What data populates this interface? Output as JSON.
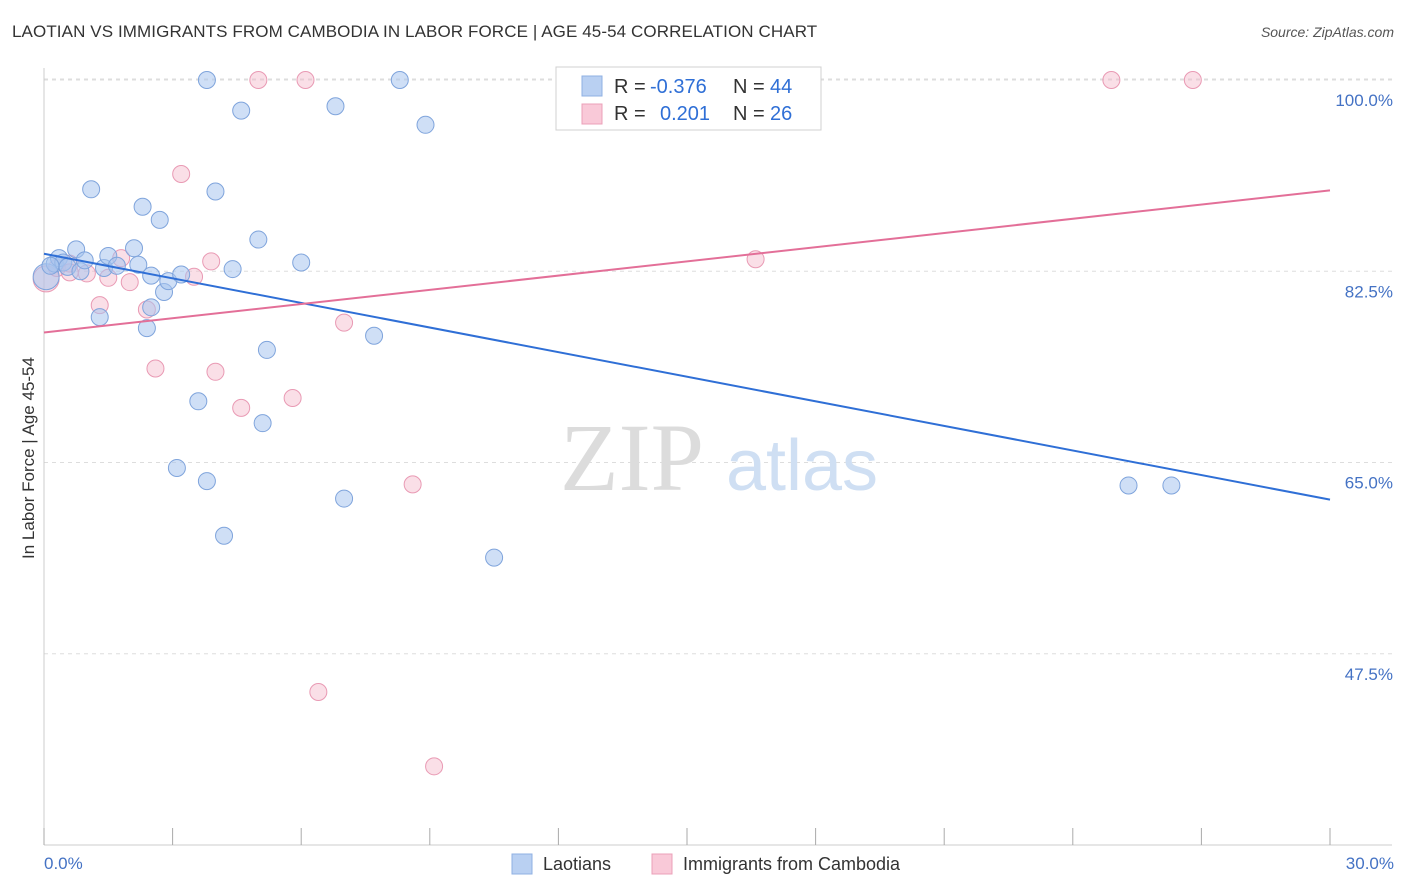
{
  "title": "LAOTIAN VS IMMIGRANTS FROM CAMBODIA IN LABOR FORCE | AGE 45-54 CORRELATION CHART",
  "source": "Source: ZipAtlas.com",
  "watermark": {
    "zip": "ZIP",
    "atlas": "atlas"
  },
  "legend": {
    "r_label": "R =",
    "n_label": "N =",
    "series1": {
      "r": "-0.376",
      "n": "44"
    },
    "series2": {
      "r": "0.201",
      "n": "26"
    }
  },
  "bottom_legend": {
    "series1": "Laotians",
    "series2": "Immigrants from Cambodia"
  },
  "chart_data": {
    "type": "scatter",
    "title": "LAOTIAN VS IMMIGRANTS FROM CAMBODIA IN LABOR FORCE | AGE 45-54 CORRELATION CHART",
    "xlabel": "",
    "ylabel": "In Labor Force | Age 45-54",
    "xlim": [
      0,
      30
    ],
    "ylim": [
      30,
      101.5
    ],
    "x_tick_labels": [
      "0.0%",
      "30.0%"
    ],
    "y_ticks": [
      47.5,
      65.0,
      82.5,
      100.0
    ],
    "y_tick_labels": [
      "47.5%",
      "65.0%",
      "82.5%",
      "100.0%"
    ],
    "colors": {
      "series1": "#a7c4ee",
      "series1_line": "#2f6fd6",
      "series2": "#f5b8ca",
      "series2_line": "#e36f98"
    },
    "series": [
      {
        "name": "Laotians",
        "r": -0.376,
        "n": 44,
        "trend": [
          [
            0,
            84.1
          ],
          [
            30,
            61.6
          ]
        ],
        "points": [
          [
            0.05,
            82.0
          ],
          [
            0.25,
            83.2
          ],
          [
            0.35,
            83.7
          ],
          [
            0.45,
            83.3
          ],
          [
            0.55,
            82.9
          ],
          [
            0.75,
            84.5
          ],
          [
            0.85,
            82.5
          ],
          [
            0.95,
            83.5
          ],
          [
            1.1,
            90.0
          ],
          [
            1.3,
            78.3
          ],
          [
            1.4,
            82.8
          ],
          [
            1.5,
            83.9
          ],
          [
            1.7,
            83.0
          ],
          [
            2.1,
            84.6
          ],
          [
            2.2,
            83.1
          ],
          [
            2.3,
            88.4
          ],
          [
            2.4,
            77.3
          ],
          [
            2.5,
            79.2
          ],
          [
            2.5,
            82.1
          ],
          [
            2.7,
            87.2
          ],
          [
            2.8,
            80.6
          ],
          [
            2.9,
            81.6
          ],
          [
            3.1,
            64.5
          ],
          [
            3.2,
            82.2
          ],
          [
            3.8,
            100.0
          ],
          [
            3.6,
            70.6
          ],
          [
            3.8,
            63.3
          ],
          [
            4.0,
            89.8
          ],
          [
            4.2,
            58.3
          ],
          [
            4.4,
            82.7
          ],
          [
            4.6,
            97.2
          ],
          [
            5.0,
            85.4
          ],
          [
            5.1,
            68.6
          ],
          [
            5.2,
            75.3
          ],
          [
            6.0,
            83.3
          ],
          [
            6.8,
            97.6
          ],
          [
            7.0,
            61.7
          ],
          [
            7.7,
            76.6
          ],
          [
            8.3,
            100.0
          ],
          [
            8.9,
            95.9
          ],
          [
            10.5,
            56.3
          ],
          [
            25.3,
            62.9
          ],
          [
            26.3,
            62.9
          ],
          [
            0.15,
            83.0
          ]
        ]
      },
      {
        "name": "Immigrants from Cambodia",
        "r": 0.201,
        "n": 26,
        "trend": [
          [
            0,
            76.9
          ],
          [
            30,
            89.9
          ]
        ],
        "points": [
          [
            0.05,
            81.8
          ],
          [
            0.3,
            82.8
          ],
          [
            0.6,
            83.2
          ],
          [
            1.0,
            82.3
          ],
          [
            1.3,
            79.4
          ],
          [
            1.5,
            81.9
          ],
          [
            1.8,
            83.7
          ],
          [
            2.0,
            81.5
          ],
          [
            2.4,
            79.0
          ],
          [
            2.6,
            73.6
          ],
          [
            3.2,
            91.4
          ],
          [
            3.5,
            82.0
          ],
          [
            3.9,
            83.4
          ],
          [
            4.0,
            73.3
          ],
          [
            4.6,
            70.0
          ],
          [
            5.0,
            100.0
          ],
          [
            5.8,
            70.9
          ],
          [
            6.1,
            100.0
          ],
          [
            6.4,
            44.0
          ],
          [
            7.0,
            77.8
          ],
          [
            8.6,
            63.0
          ],
          [
            9.1,
            37.2
          ],
          [
            16.6,
            83.6
          ],
          [
            24.9,
            100.0
          ],
          [
            26.8,
            100.0
          ],
          [
            0.6,
            82.4
          ]
        ]
      }
    ]
  }
}
